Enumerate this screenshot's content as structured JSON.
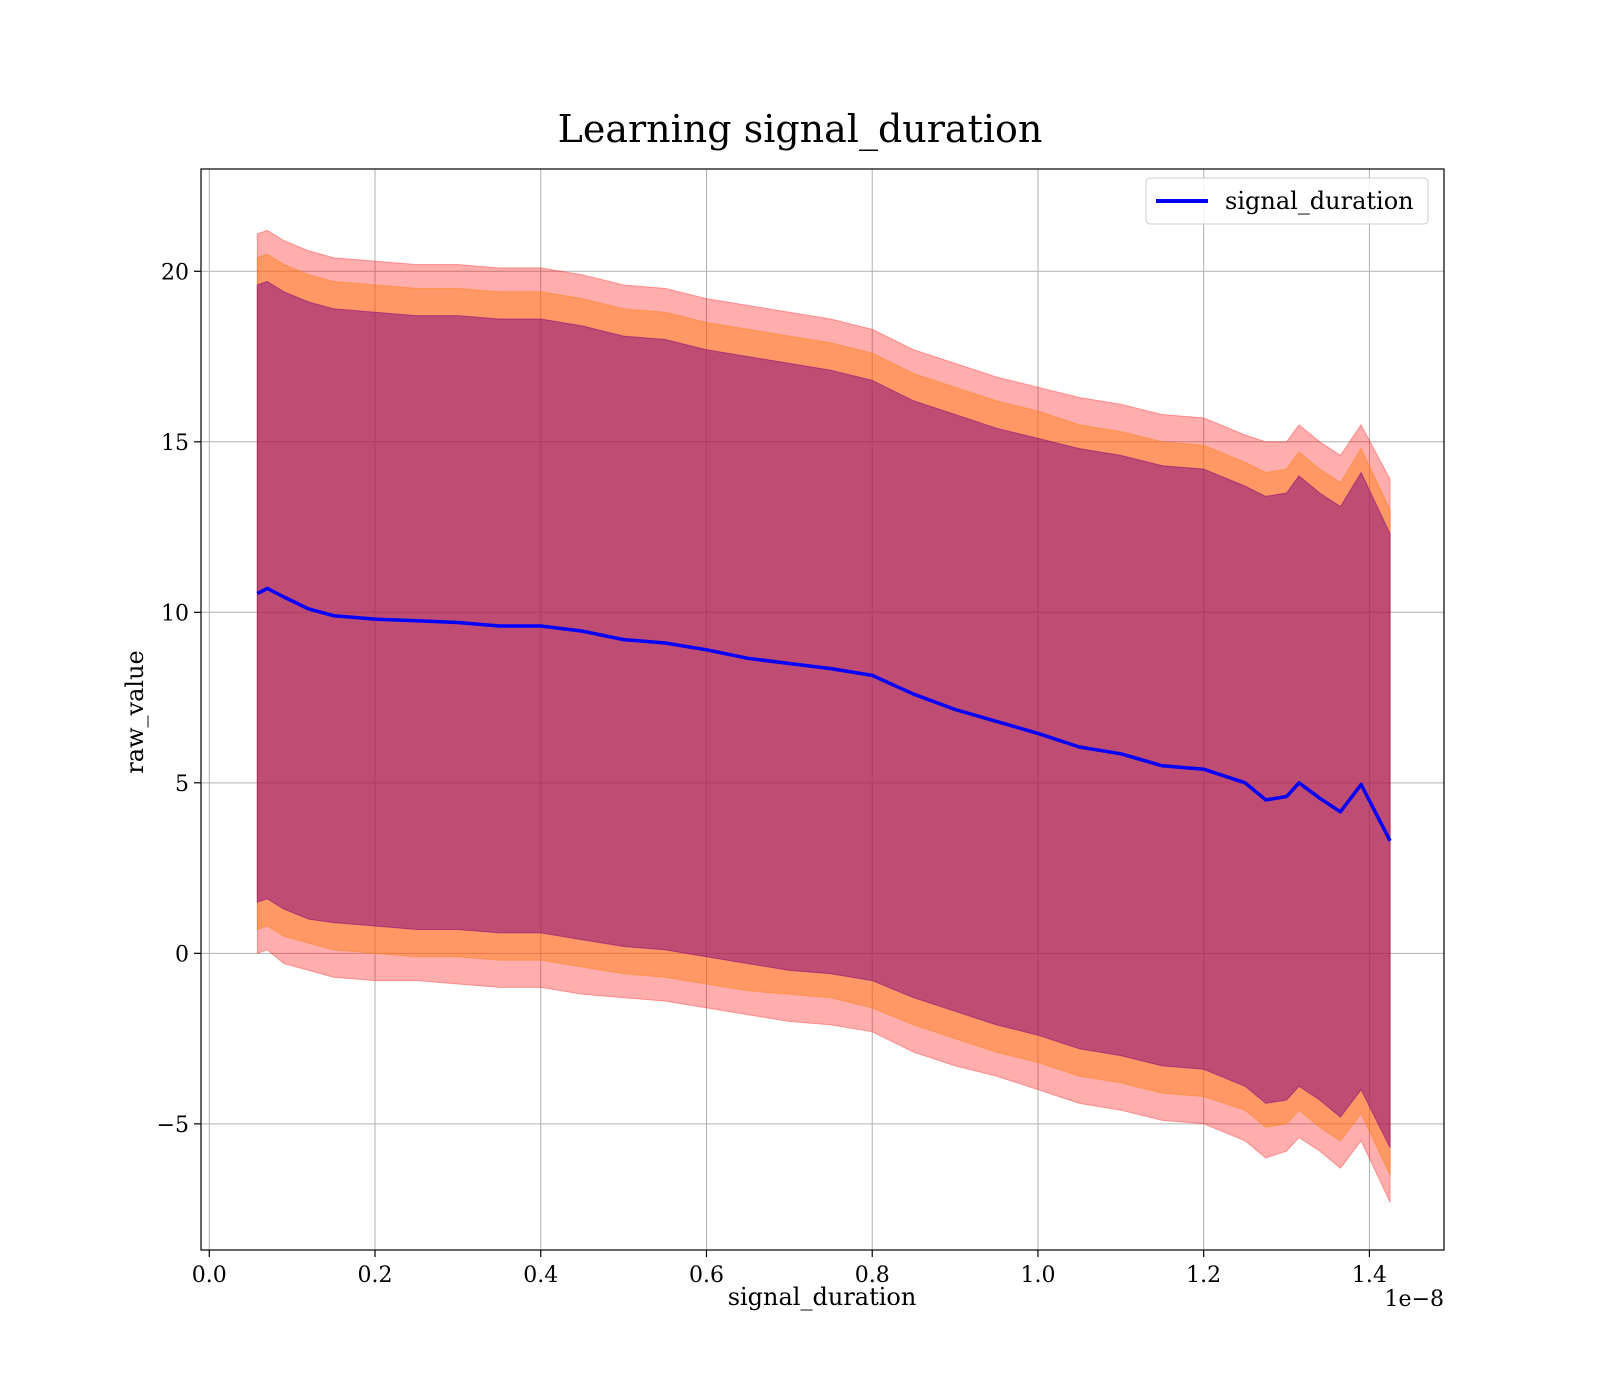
{
  "chart_data": {
    "type": "area",
    "title": "Learning signal_duration",
    "xlabel": "signal_duration",
    "ylabel": "raw_value",
    "x_offset_label": "1e−8",
    "xlim": [
      -0.01,
      1.49
    ],
    "ylim": [
      -8.7,
      23.0
    ],
    "x_ticks": [
      0.0,
      0.2,
      0.4,
      0.6,
      0.8,
      1.0,
      1.2,
      1.4
    ],
    "x_tick_labels": [
      "0.0",
      "0.2",
      "0.4",
      "0.6",
      "0.8",
      "1.0",
      "1.2",
      "1.4"
    ],
    "y_ticks": [
      -5,
      0,
      5,
      10,
      15,
      20
    ],
    "y_tick_labels": [
      "−5",
      "0",
      "5",
      "10",
      "15",
      "20"
    ],
    "grid": true,
    "legend": {
      "position": "top-right",
      "entries": [
        "signal_duration"
      ]
    },
    "colors": {
      "line": "#0000ff",
      "band_outer": "#ff0000",
      "band_middle": "#ff7f0e",
      "band_inner": "#800080",
      "grid": "#b0b0b0"
    },
    "series": [
      {
        "name": "signal_duration",
        "x": [
          0.058,
          0.07,
          0.09,
          0.12,
          0.15,
          0.2,
          0.25,
          0.3,
          0.35,
          0.4,
          0.45,
          0.5,
          0.55,
          0.6,
          0.65,
          0.7,
          0.75,
          0.8,
          0.85,
          0.9,
          0.95,
          1.0,
          1.05,
          1.1,
          1.15,
          1.2,
          1.25,
          1.275,
          1.3,
          1.315,
          1.34,
          1.365,
          1.39,
          1.425
        ],
        "mean": [
          10.55,
          10.7,
          10.45,
          10.1,
          9.9,
          9.8,
          9.75,
          9.7,
          9.6,
          9.6,
          9.45,
          9.2,
          9.1,
          8.9,
          8.65,
          8.5,
          8.35,
          8.15,
          7.6,
          7.15,
          6.8,
          6.45,
          6.05,
          5.85,
          5.5,
          5.4,
          5.0,
          4.5,
          4.6,
          5.0,
          4.55,
          4.15,
          4.95,
          3.3
        ],
        "band_outer": {
          "upper": [
            21.1,
            21.2,
            20.9,
            20.6,
            20.4,
            20.3,
            20.2,
            20.2,
            20.1,
            20.1,
            19.9,
            19.6,
            19.5,
            19.2,
            19.0,
            18.8,
            18.6,
            18.3,
            17.7,
            17.3,
            16.9,
            16.6,
            16.3,
            16.1,
            15.8,
            15.7,
            15.2,
            15.0,
            15.0,
            15.5,
            15.0,
            14.6,
            15.5,
            13.9
          ],
          "lower": [
            0.0,
            0.1,
            -0.3,
            -0.5,
            -0.7,
            -0.8,
            -0.8,
            -0.9,
            -1.0,
            -1.0,
            -1.2,
            -1.3,
            -1.4,
            -1.6,
            -1.8,
            -2.0,
            -2.1,
            -2.3,
            -2.9,
            -3.3,
            -3.6,
            -4.0,
            -4.4,
            -4.6,
            -4.9,
            -5.0,
            -5.5,
            -6.0,
            -5.8,
            -5.4,
            -5.8,
            -6.3,
            -5.5,
            -7.3
          ]
        },
        "band_middle": {
          "upper": [
            20.4,
            20.5,
            20.2,
            19.9,
            19.7,
            19.6,
            19.5,
            19.5,
            19.4,
            19.4,
            19.2,
            18.9,
            18.8,
            18.5,
            18.3,
            18.1,
            17.9,
            17.6,
            17.0,
            16.6,
            16.2,
            15.9,
            15.5,
            15.3,
            15.0,
            14.9,
            14.4,
            14.1,
            14.2,
            14.7,
            14.2,
            13.8,
            14.8,
            13.0
          ],
          "lower": [
            0.7,
            0.8,
            0.5,
            0.3,
            0.1,
            0.0,
            -0.1,
            -0.1,
            -0.2,
            -0.2,
            -0.4,
            -0.6,
            -0.7,
            -0.9,
            -1.1,
            -1.2,
            -1.3,
            -1.6,
            -2.1,
            -2.5,
            -2.9,
            -3.2,
            -3.6,
            -3.8,
            -4.1,
            -4.2,
            -4.6,
            -5.1,
            -5.0,
            -4.6,
            -5.1,
            -5.5,
            -4.7,
            -6.5
          ]
        },
        "band_inner": {
          "upper": [
            19.6,
            19.7,
            19.4,
            19.1,
            18.9,
            18.8,
            18.7,
            18.7,
            18.6,
            18.6,
            18.4,
            18.1,
            18.0,
            17.7,
            17.5,
            17.3,
            17.1,
            16.8,
            16.2,
            15.8,
            15.4,
            15.1,
            14.8,
            14.6,
            14.3,
            14.2,
            13.7,
            13.4,
            13.5,
            14.0,
            13.5,
            13.1,
            14.1,
            12.3
          ],
          "lower": [
            1.5,
            1.6,
            1.3,
            1.0,
            0.9,
            0.8,
            0.7,
            0.7,
            0.6,
            0.6,
            0.4,
            0.2,
            0.1,
            -0.1,
            -0.3,
            -0.5,
            -0.6,
            -0.8,
            -1.3,
            -1.7,
            -2.1,
            -2.4,
            -2.8,
            -3.0,
            -3.3,
            -3.4,
            -3.9,
            -4.4,
            -4.3,
            -3.9,
            -4.3,
            -4.8,
            -4.0,
            -5.7
          ]
        }
      }
    ]
  }
}
